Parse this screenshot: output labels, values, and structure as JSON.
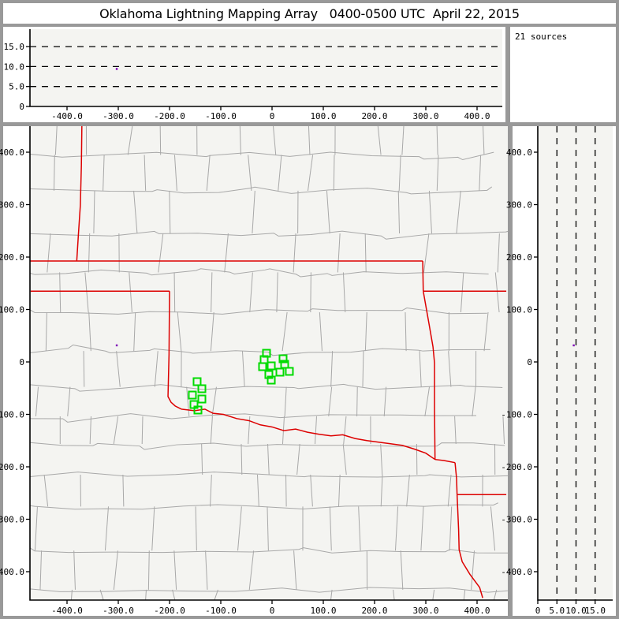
{
  "window": {
    "title": "Oklahoma Lightning Mapping Array   0400-0500 UTC  April 22, 2015"
  },
  "status": {
    "sources_label": "21 sources"
  },
  "colors": {
    "frame": "#999999",
    "panel_bg": "#ffffff",
    "plot_bg": "#f4f4f1",
    "county_line": "#a8a8a8",
    "state_border": "#dd0000",
    "source_marker": "#00db00",
    "odd_source": "#7d00b8",
    "axis": "#000000"
  },
  "chart_data": [
    {
      "id": "ew_altitude_panel",
      "type": "scatter",
      "description": "altitude (km) vs east-west distance (km)",
      "x_tick_labels": [
        "-400.0",
        "-300.0",
        "-200.0",
        "-100.0",
        "0",
        "100.0",
        "200.0",
        "300.0",
        "400.0"
      ],
      "x_tick_values": [
        -400,
        -300,
        -200,
        -100,
        0,
        100,
        200,
        300,
        400
      ],
      "y_tick_labels": [
        "15.0",
        "10.0",
        "5.0",
        "0"
      ],
      "y_tick_values": [
        15,
        10,
        5,
        0
      ],
      "xlim": [
        -472,
        457
      ],
      "ylim": [
        0,
        19.4
      ],
      "grid": "dashed-horizontal",
      "dashed_altitudes_km": [
        5,
        10,
        15
      ],
      "points": [
        {
          "x_km": -303,
          "alt_km": 9.4,
          "color": "#7d00b8"
        }
      ]
    },
    {
      "id": "plan_view_map",
      "type": "scatter",
      "description": "plan view map, km east-west vs km north-south, county and state borders",
      "x_tick_labels": [
        "-400.0",
        "-300.0",
        "-200.0",
        "-100.0",
        "0",
        "100.0",
        "200.0",
        "300.0",
        "400.0"
      ],
      "x_tick_values": [
        -400,
        -300,
        -200,
        -100,
        0,
        100,
        200,
        300,
        400
      ],
      "y_tick_labels": [
        "400.0",
        "300.0",
        "200.0",
        "100.0",
        "0",
        "-100.0",
        "-200.0",
        "-300.0",
        "-400.0"
      ],
      "y_tick_values": [
        400,
        300,
        200,
        100,
        0,
        -100,
        -200,
        -300,
        -400
      ],
      "xlim": [
        -472,
        460
      ],
      "ylim": [
        -454,
        450
      ],
      "sources_km": [
        [
          -10.8,
          16.5
        ],
        [
          -15.4,
          4.5
        ],
        [
          21.5,
          6.0
        ],
        [
          24.6,
          -4.5
        ],
        [
          -18.5,
          -9.0
        ],
        [
          -1.5,
          -7.5
        ],
        [
          -6.2,
          -24.1
        ],
        [
          15.4,
          -19.5
        ],
        [
          33.8,
          -18.0
        ],
        [
          -1.5,
          -34.6
        ],
        [
          -146.2,
          -37.6
        ],
        [
          -136.9,
          -51.1
        ],
        [
          -155.4,
          -63.2
        ],
        [
          -136.9,
          -70.7
        ],
        [
          -152.3,
          -81.2
        ],
        [
          -144.6,
          -91.7
        ]
      ],
      "extra_points": [
        {
          "x_km": -303,
          "y_km": 31.6,
          "color": "#7d00b8"
        }
      ],
      "state_borders_km": [
        [
          [
            -371,
            453
          ],
          [
            -372,
            375
          ],
          [
            -374,
            299
          ],
          [
            -378,
            240
          ],
          [
            -381,
            193
          ]
        ],
        [
          [
            -472,
            192.5
          ],
          [
            294,
            192.5
          ]
        ],
        [
          [
            294,
            192.5
          ],
          [
            295,
            135
          ]
        ],
        [
          [
            295,
            135
          ],
          [
            457,
            135
          ]
        ],
        [
          [
            295,
            135
          ],
          [
            306,
            74
          ],
          [
            314,
            29
          ],
          [
            317,
            -2
          ],
          [
            317,
            -92
          ],
          [
            318,
            -186
          ]
        ],
        [
          [
            -471,
            135
          ],
          [
            -200,
            135
          ]
        ],
        [
          [
            -200,
            135
          ],
          [
            -201,
            14
          ],
          [
            -203,
            -66
          ],
          [
            -197,
            -77
          ],
          [
            -189,
            -84
          ],
          [
            -177,
            -90
          ]
        ],
        [
          [
            -177,
            -90
          ],
          [
            -151,
            -93
          ],
          [
            -131,
            -90
          ],
          [
            -115,
            -98
          ],
          [
            -95,
            -100
          ],
          [
            -69,
            -108
          ],
          [
            -45,
            -112
          ],
          [
            -23,
            -120
          ],
          [
            0,
            -124
          ],
          [
            23,
            -131
          ],
          [
            46,
            -128
          ],
          [
            69,
            -134
          ],
          [
            92,
            -138
          ],
          [
            115,
            -141
          ],
          [
            138,
            -139
          ],
          [
            162,
            -146
          ],
          [
            185,
            -150
          ],
          [
            208,
            -153
          ],
          [
            231,
            -156
          ],
          [
            254,
            -159
          ],
          [
            277,
            -166
          ],
          [
            300,
            -174
          ],
          [
            318,
            -186
          ]
        ],
        [
          [
            318,
            -186
          ],
          [
            335,
            -188
          ],
          [
            357,
            -192
          ]
        ],
        [
          [
            357,
            -192
          ],
          [
            360,
            -222
          ],
          [
            361,
            -253
          ]
        ],
        [
          [
            361,
            -253
          ],
          [
            457,
            -253
          ]
        ],
        [
          [
            361,
            -253
          ],
          [
            364,
            -320
          ],
          [
            365,
            -358
          ],
          [
            371,
            -381
          ],
          [
            386,
            -405
          ],
          [
            405,
            -430
          ],
          [
            411,
            -450
          ]
        ]
      ]
    },
    {
      "id": "ns_altitude_panel",
      "type": "scatter",
      "description": "north-south distance (km) vs altitude (km)",
      "x_tick_labels": [
        "0",
        "5.0",
        "10.0",
        "15.0"
      ],
      "x_tick_values": [
        0,
        5,
        10,
        15
      ],
      "y_tick_labels": [
        "400.0",
        "300.0",
        "200.0",
        "100.0",
        "0",
        "-100.0",
        "-200.0",
        "-300.0",
        "-400.0"
      ],
      "y_tick_values": [
        400,
        300,
        200,
        100,
        0,
        -100,
        -200,
        -300,
        -400
      ],
      "xlim": [
        0,
        19.6
      ],
      "ylim": [
        -454,
        450
      ],
      "grid": "dashed-vertical",
      "dashed_altitudes_km": [
        5,
        10,
        15
      ],
      "points": [
        {
          "alt_km": 9.4,
          "y_km": 31.6,
          "color": "#7d00b8"
        }
      ]
    }
  ]
}
